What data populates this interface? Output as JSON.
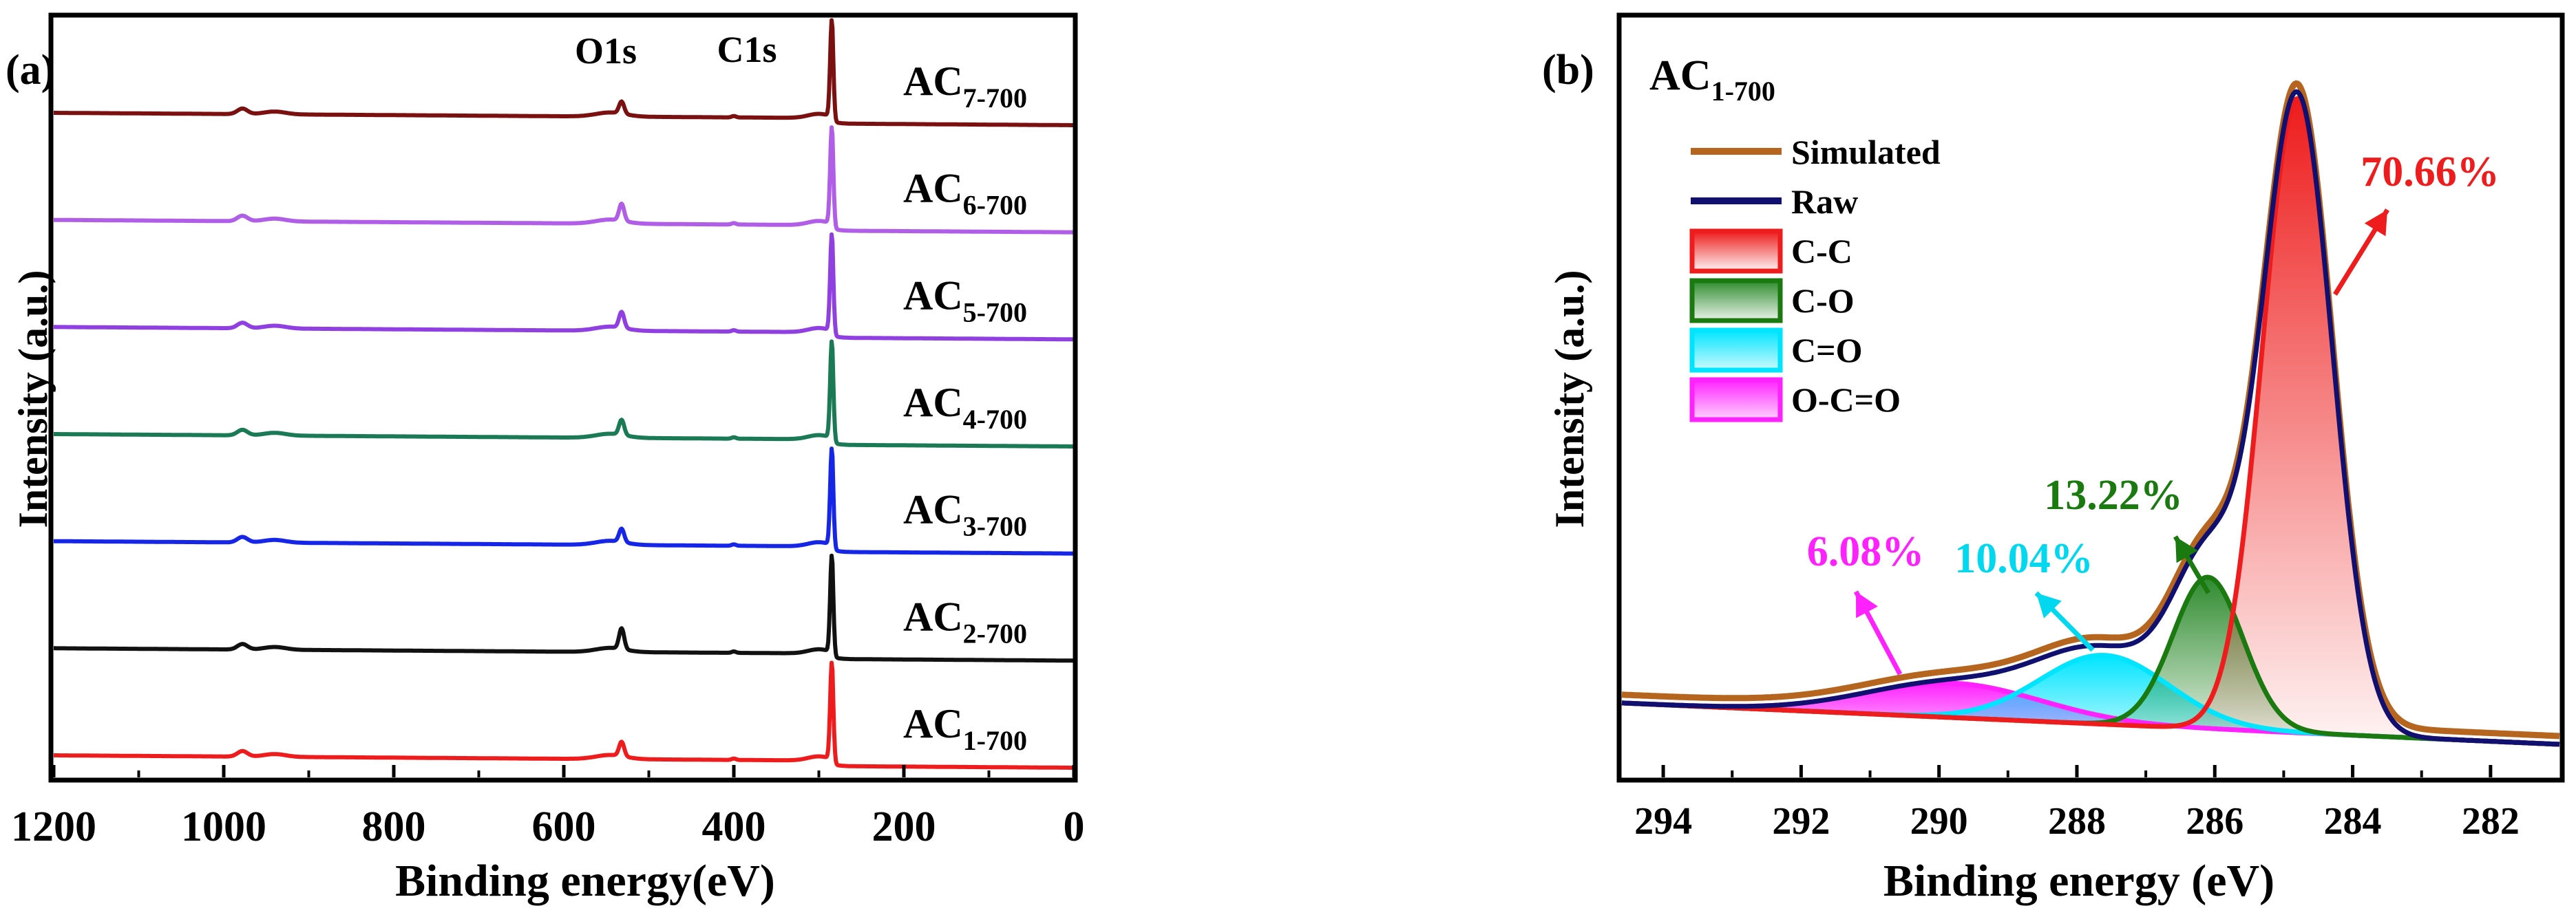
{
  "chart_data": [
    {
      "type": "line",
      "panel_label": "(a)",
      "xlabel": "Binding energy(eV)",
      "ylabel": "Intensity (a.u.)",
      "xlim": [
        1200,
        0
      ],
      "x_ticks": [
        "1200",
        "1000",
        "800",
        "600",
        "400",
        "200",
        "0"
      ],
      "peak_labels": [
        "O1s",
        "C1s"
      ],
      "peaks_eV": [
        532,
        284.8
      ],
      "series": [
        {
          "name": "AC7-700",
          "main": "AC",
          "sub": "7-700",
          "color": "#7b1010",
          "c1s_height": 1.0,
          "o1s_height": 0.32
        },
        {
          "name": "AC6-700",
          "main": "AC",
          "sub": "6-700",
          "color": "#b05ee8",
          "c1s_height": 1.0,
          "o1s_height": 0.45
        },
        {
          "name": "AC5-700",
          "main": "AC",
          "sub": "5-700",
          "color": "#9040e0",
          "c1s_height": 1.0,
          "o1s_height": 0.42
        },
        {
          "name": "AC4-700",
          "main": "AC",
          "sub": "4-700",
          "color": "#1a7a55",
          "c1s_height": 1.0,
          "o1s_height": 0.4
        },
        {
          "name": "AC3-700",
          "main": "AC",
          "sub": "3-700",
          "color": "#1626e6",
          "c1s_height": 1.0,
          "o1s_height": 0.35
        },
        {
          "name": "AC2-700",
          "main": "AC",
          "sub": "2-700",
          "color": "#111111",
          "c1s_height": 1.0,
          "o1s_height": 0.55
        },
        {
          "name": "AC1-700",
          "main": "AC",
          "sub": "1-700",
          "color": "#ee1c1c",
          "c1s_height": 1.0,
          "o1s_height": 0.38
        }
      ]
    },
    {
      "type": "area",
      "panel_label": "(b)",
      "sample": {
        "main": "AC",
        "sub": "1-700"
      },
      "xlabel": "Binding energy (eV)",
      "ylabel": "Intensity (a.u.)",
      "xlim": [
        294.6,
        281.0
      ],
      "x_ticks": [
        294,
        292,
        290,
        288,
        286,
        284,
        282
      ],
      "baseline": {
        "left": 0.06,
        "right": 0.0
      },
      "components": [
        {
          "name": "C-C",
          "center": 284.8,
          "fwhm": 1.2,
          "height": 0.92,
          "percent": "70.66%",
          "line_color": "#ee1c1c",
          "fill_color": "#ee1c1c",
          "label_color": "#ee1c1c"
        },
        {
          "name": "C-O",
          "center": 286.1,
          "fwhm": 1.2,
          "height": 0.22,
          "percent": "13.22%",
          "line_color": "#1a7a10",
          "fill_color": "#2e8b2e",
          "label_color": "#1a7a10"
        },
        {
          "name": "C=O",
          "center": 287.6,
          "fwhm": 2.2,
          "height": 0.1,
          "percent": "10.04%",
          "line_color": "#00e5ff",
          "fill_color": "#00e5ff",
          "label_color": "#00d8f0"
        },
        {
          "name": "O-C=O",
          "center": 289.8,
          "fwhm": 3.0,
          "height": 0.05,
          "percent": "6.08%",
          "line_color": "#ff22ff",
          "fill_color": "#ff22ff",
          "label_color": "#ff22ff"
        }
      ],
      "legend": [
        {
          "label": "Simulated",
          "kind": "line",
          "color": "#b5651d"
        },
        {
          "label": "Raw",
          "kind": "line",
          "color": "#101070"
        },
        {
          "label": "C-C",
          "kind": "box",
          "color": "#ee1c1c"
        },
        {
          "label": "C-O",
          "kind": "box",
          "color": "#1a7a10"
        },
        {
          "label": "C=O",
          "kind": "box",
          "color": "#00e5ff"
        },
        {
          "label": "O-C=O",
          "kind": "box",
          "color": "#ff22ff"
        }
      ],
      "simulated_color": "#b5651d",
      "raw_color": "#101070"
    }
  ]
}
